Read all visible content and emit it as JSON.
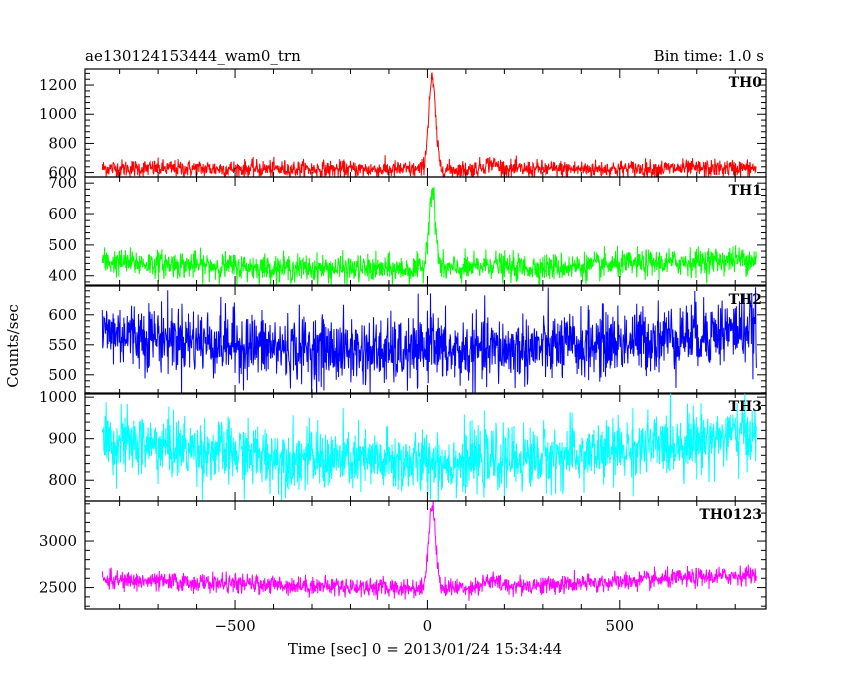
{
  "chart_data": {
    "type": "line",
    "title_left": "ae130124153444_wam0_trn",
    "title_right": "Bin time: 1.0 s",
    "xlabel": "Time [sec] 0 = 2013/01/24 15:34:44",
    "ylabel": "Counts/sec",
    "xlim": [
      -890,
      880
    ],
    "x_ticks": [
      -500,
      0,
      500
    ],
    "x_range": [
      -845,
      855
    ],
    "grid": false,
    "panels": [
      {
        "name": "TH0",
        "color": "#ff0000",
        "ylim": [
          570,
          1310
        ],
        "y_ticks": [
          600,
          800,
          1000,
          1200
        ],
        "baseline_points": [
          [
            -845,
            630
          ],
          [
            0,
            620
          ],
          [
            855,
            630
          ]
        ],
        "noise": 30,
        "peak": {
          "x": 12,
          "height": 620,
          "width": 9
        },
        "bump": {
          "x": 165,
          "height": 40,
          "width": 20
        }
      },
      {
        "name": "TH1",
        "color": "#00ff00",
        "ylim": [
          370,
          720
        ],
        "y_ticks": [
          400,
          500,
          600,
          700
        ],
        "baseline_points": [
          [
            -845,
            445
          ],
          [
            -400,
            425
          ],
          [
            0,
            420
          ],
          [
            400,
            430
          ],
          [
            855,
            455
          ]
        ],
        "noise": 22,
        "peak": {
          "x": 12,
          "height": 250,
          "width": 9
        },
        "bump": {
          "x": 165,
          "height": 15,
          "width": 20
        }
      },
      {
        "name": "TH2",
        "color": "#0000ff",
        "ylim": [
          468,
          648
        ],
        "y_ticks": [
          500,
          550,
          600
        ],
        "baseline_points": [
          [
            -845,
            572
          ],
          [
            -400,
            545
          ],
          [
            0,
            535
          ],
          [
            400,
            548
          ],
          [
            855,
            578
          ]
        ],
        "noise": 28,
        "peak": {
          "x": 12,
          "height": 40,
          "width": 9
        },
        "bump": {
          "x": 165,
          "height": 0,
          "width": 20
        }
      },
      {
        "name": "TH3",
        "color": "#00ffff",
        "ylim": [
          750,
          1010
        ],
        "y_ticks": [
          800,
          900,
          1000
        ],
        "baseline_points": [
          [
            -845,
            895
          ],
          [
            -400,
            855
          ],
          [
            0,
            840
          ],
          [
            400,
            860
          ],
          [
            855,
            915
          ]
        ],
        "noise": 38,
        "peak": {
          "x": 12,
          "height": 10,
          "width": 9
        },
        "bump": {
          "x": 165,
          "height": 0,
          "width": 20
        }
      },
      {
        "name": "TH0123",
        "color": "#ff00ff",
        "ylim": [
          2270,
          3430
        ],
        "y_ticks": [
          2500,
          3000
        ],
        "baseline_points": [
          [
            -845,
            2580
          ],
          [
            -400,
            2530
          ],
          [
            0,
            2490
          ],
          [
            400,
            2540
          ],
          [
            855,
            2640
          ]
        ],
        "noise": 50,
        "peak": {
          "x": 12,
          "height": 900,
          "width": 9
        },
        "bump": {
          "x": 165,
          "height": 60,
          "width": 20
        }
      }
    ]
  }
}
